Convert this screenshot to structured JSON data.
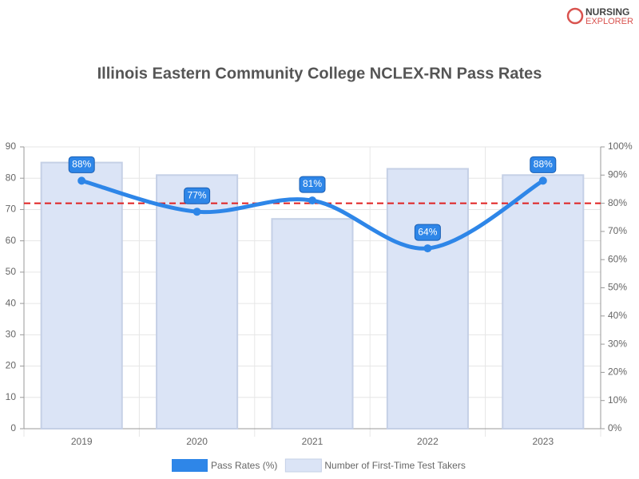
{
  "chart_data": {
    "type": "combo",
    "title": "Illinois Eastern Community College NCLEX-RN Pass Rates",
    "logo": [
      "NURSING",
      "EXPLORER"
    ],
    "categories": [
      "2019",
      "2020",
      "2021",
      "2022",
      "2023"
    ],
    "series": [
      {
        "name": "Pass Rates (%)",
        "type": "line",
        "axis": "y2",
        "color": "#2e86e8",
        "values": [
          88,
          77,
          81,
          64,
          88
        ],
        "value_labels": [
          "88%",
          "77%",
          "81%",
          "64%",
          "88%"
        ]
      },
      {
        "name": "Number of First-Time Test Takers",
        "type": "bar",
        "axis": "y",
        "color": "#dbe4f6",
        "values": [
          85,
          81,
          67,
          83,
          81
        ]
      }
    ],
    "reference_line": {
      "value": 80,
      "axis": "y2",
      "color": "#e02020"
    },
    "ylim": [
      0,
      90
    ],
    "yticks": [
      0,
      10,
      20,
      30,
      40,
      50,
      60,
      70,
      80,
      90
    ],
    "y2lim": [
      0,
      100
    ],
    "y2ticks": [
      {
        "value": 0,
        "label": "0%"
      },
      {
        "value": 10,
        "label": "10%"
      },
      {
        "value": 20,
        "label": "20%"
      },
      {
        "value": 30,
        "label": "30%"
      },
      {
        "value": 40,
        "label": "40%"
      },
      {
        "value": 50,
        "label": "50%"
      },
      {
        "value": 60,
        "label": "60%"
      },
      {
        "value": 70,
        "label": "70%"
      },
      {
        "value": 80,
        "label": "80%"
      },
      {
        "value": 90,
        "label": "90%"
      },
      {
        "value": 100,
        "label": "100%"
      }
    ],
    "grid": true,
    "legend": "bottom"
  }
}
